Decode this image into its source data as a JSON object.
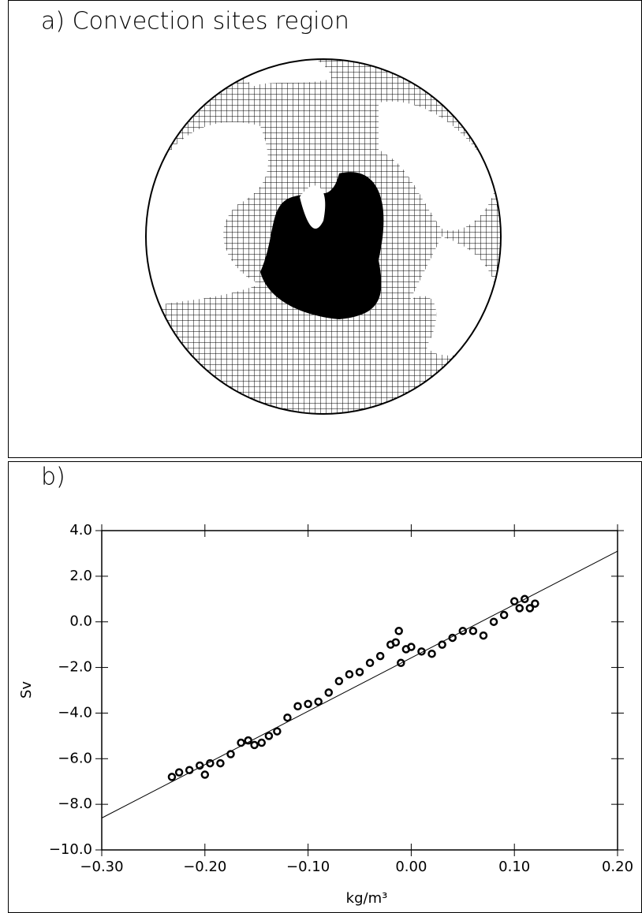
{
  "chart_data": [
    {
      "type": "map",
      "title": "a) Convection sites region"
    },
    {
      "type": "scatter",
      "title": "b)",
      "x_label": "kg/m³",
      "y_label": "Sv",
      "xlim": [
        -0.3,
        0.2
      ],
      "xticks": [
        {
          "value": -0.3,
          "label": "−0.30"
        },
        {
          "value": -0.2,
          "label": "−0.20"
        },
        {
          "value": -0.1,
          "label": "−0.10"
        },
        {
          "value": 0,
          "label": "0.00"
        },
        {
          "value": 0.1,
          "label": "0.10"
        },
        {
          "value": 0.2,
          "label": "0.20"
        }
      ],
      "ylim": [
        -10,
        4
      ],
      "yticks": [
        {
          "value": -10,
          "label": "−10.0"
        },
        {
          "value": -8,
          "label": "−8.0"
        },
        {
          "value": -6,
          "label": "−6.0"
        },
        {
          "value": -4,
          "label": "−4.0"
        },
        {
          "value": -2,
          "label": "−2.0"
        },
        {
          "value": 0,
          "label": "0.0"
        },
        {
          "value": 2,
          "label": "2.0"
        },
        {
          "value": 4,
          "label": "4.0"
        }
      ],
      "color": "#000000",
      "x": [
        -0.232,
        -0.225,
        -0.215,
        -0.205,
        -0.2,
        -0.195,
        -0.185,
        -0.175,
        -0.165,
        -0.158,
        -0.152,
        -0.145,
        -0.138,
        -0.13,
        -0.12,
        -0.11,
        -0.1,
        -0.09,
        -0.08,
        -0.07,
        -0.06,
        -0.05,
        -0.04,
        -0.03,
        -0.02,
        -0.015,
        -0.012,
        -0.01,
        -0.005,
        0.0,
        0.01,
        0.02,
        0.03,
        0.04,
        0.05,
        0.06,
        0.07,
        0.08,
        0.09,
        0.1,
        0.105,
        0.11,
        0.115,
        0.12
      ],
      "y": [
        -6.8,
        -6.6,
        -6.5,
        -6.3,
        -6.7,
        -6.2,
        -6.2,
        -5.8,
        -5.3,
        -5.2,
        -5.4,
        -5.3,
        -5.0,
        -4.8,
        -4.2,
        -3.7,
        -3.6,
        -3.5,
        -3.1,
        -2.6,
        -2.3,
        -2.2,
        -1.8,
        -1.5,
        -1.0,
        -0.9,
        -0.4,
        -1.8,
        -1.2,
        -1.1,
        -1.3,
        -1.4,
        -1.0,
        -0.7,
        -0.4,
        -0.4,
        -0.6,
        0.0,
        0.3,
        0.9,
        0.6,
        1.0,
        0.6,
        0.8
      ],
      "fit_line": {
        "x": [
          -0.3,
          0.2
        ],
        "y": [
          -8.6,
          3.1
        ]
      }
    }
  ]
}
